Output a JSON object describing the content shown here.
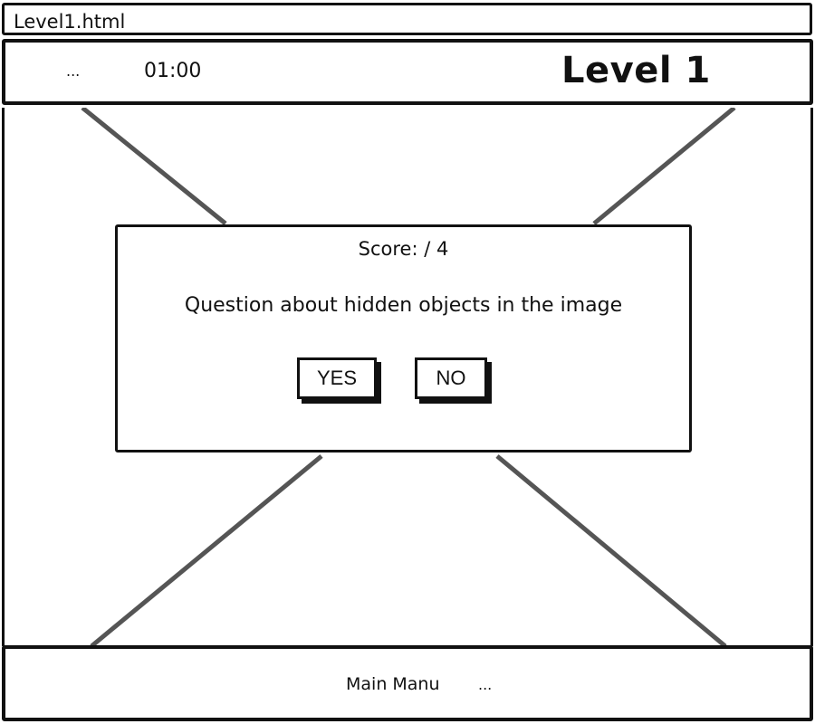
{
  "window": {
    "title": "Level1.html"
  },
  "header": {
    "menu_dots": "...",
    "timer": "01:00",
    "level_title": "Level 1"
  },
  "dialog": {
    "score_text": "Score: / 4",
    "question_text": "Question about hidden objects in the image",
    "yes_label": "YES",
    "no_label": "NO"
  },
  "footer": {
    "main_menu_label": "Main Manu",
    "more_dots": "..."
  },
  "colors": {
    "stroke": "#111111",
    "placeholder_line": "#555555",
    "background": "#ffffff"
  }
}
